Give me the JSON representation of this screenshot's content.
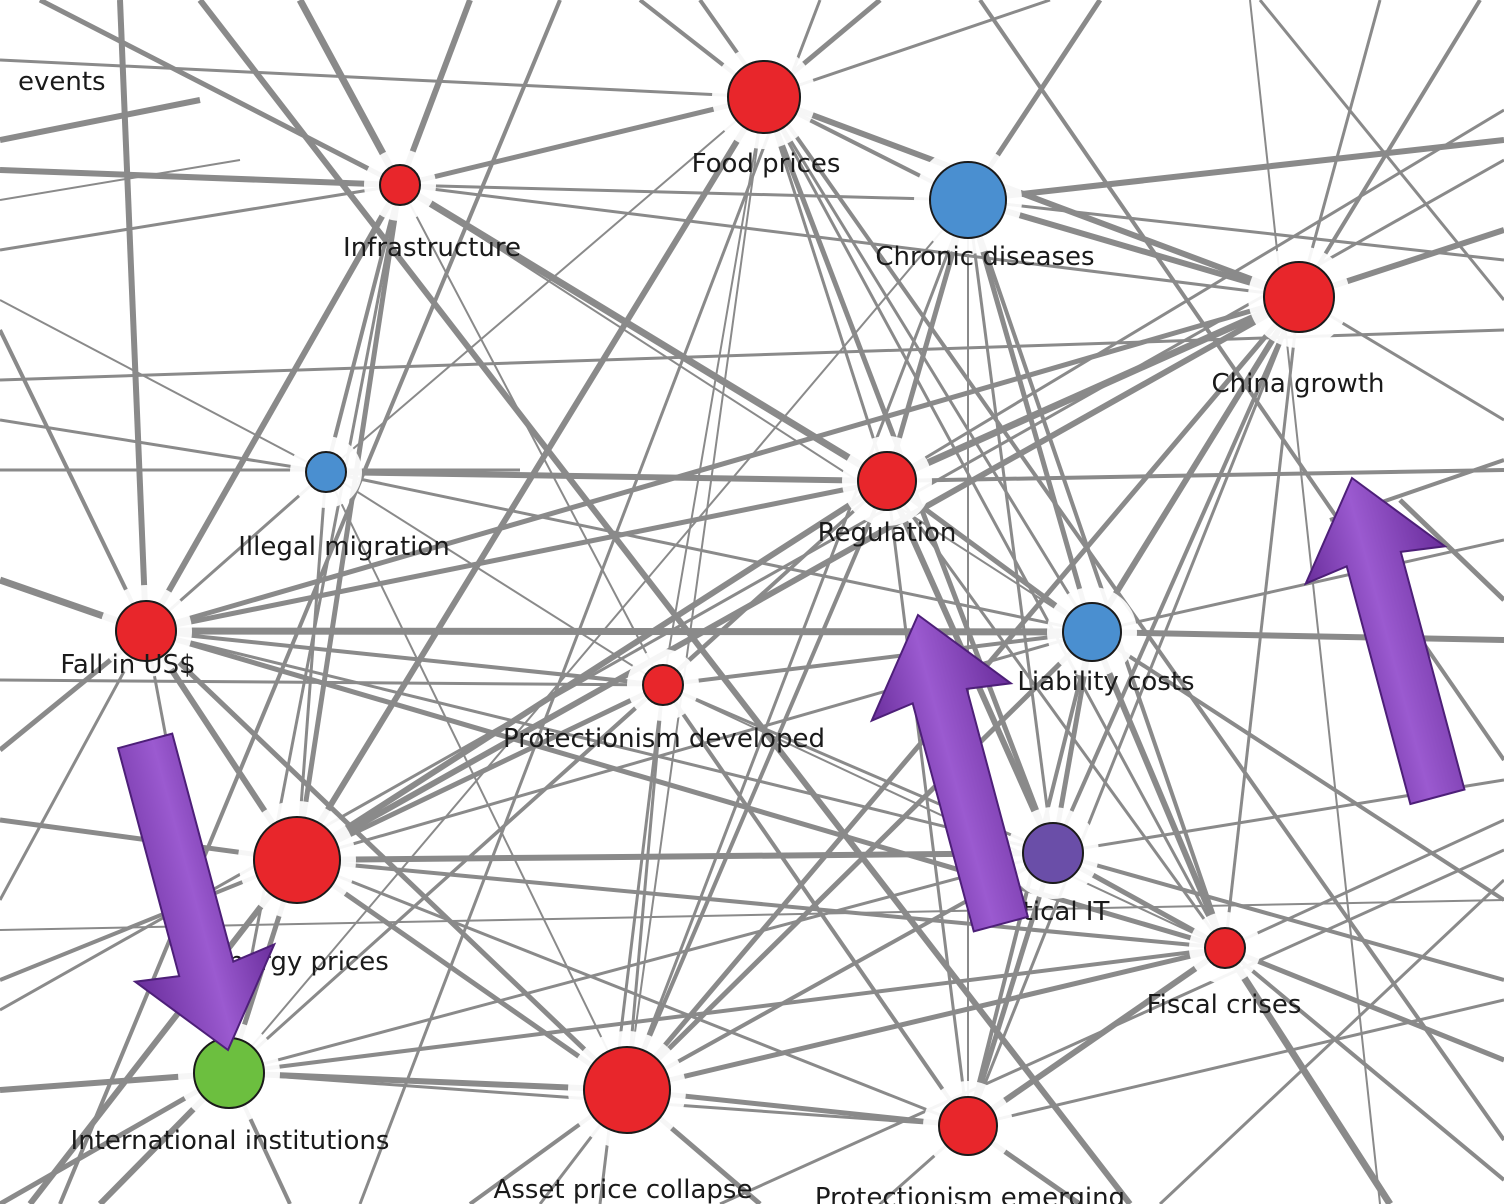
{
  "diagram": {
    "nodes": [
      {
        "id": "events",
        "label": "events",
        "size": 0,
        "color": ""
      },
      {
        "id": "food",
        "label": "Food prices",
        "size": 36,
        "color": "#e8262b"
      },
      {
        "id": "infra",
        "label": "Infrastructure",
        "size": 20,
        "color": "#e8262b"
      },
      {
        "id": "chronic",
        "label": "Chronic diseases",
        "size": 38,
        "color": "#4a8fd0"
      },
      {
        "id": "china",
        "label": "China growth",
        "size": 35,
        "color": "#e8262b"
      },
      {
        "id": "illegal",
        "label": "Illegal migration",
        "size": 20,
        "color": "#4a8fd0"
      },
      {
        "id": "regulation",
        "label": "Regulation",
        "size": 29,
        "color": "#e8262b"
      },
      {
        "id": "fallusd",
        "label": "Fall in US$",
        "size": 30,
        "color": "#e8262b"
      },
      {
        "id": "liability",
        "label": "Liability costs",
        "size": 29,
        "color": "#4a8fd0"
      },
      {
        "id": "protdev",
        "label": "Protectionism developed",
        "size": 20,
        "color": "#e8262b"
      },
      {
        "id": "energy",
        "label": "Energy prices",
        "size": 43,
        "color": "#e8262b"
      },
      {
        "id": "critit",
        "label": "Critical IT",
        "size": 30,
        "color": "#6a4ea8"
      },
      {
        "id": "fiscal",
        "label": "Fiscal crises",
        "size": 20,
        "color": "#e8262b"
      },
      {
        "id": "intl",
        "label": "International institutions",
        "size": 35,
        "color": "#6cbf3f"
      },
      {
        "id": "asset",
        "label": "Asset price collapse",
        "size": 43,
        "color": "#e8262b"
      },
      {
        "id": "protemg",
        "label": "Protectionism emerging",
        "size": 29,
        "color": "#e8262b"
      }
    ],
    "arrows": [
      {
        "id": "arrow-down-left",
        "direction": "down",
        "color": "#7d3eb0"
      },
      {
        "id": "arrow-up-middle",
        "direction": "up",
        "color": "#7d3eb0"
      },
      {
        "id": "arrow-up-right",
        "direction": "up",
        "color": "#7d3eb0"
      }
    ]
  }
}
